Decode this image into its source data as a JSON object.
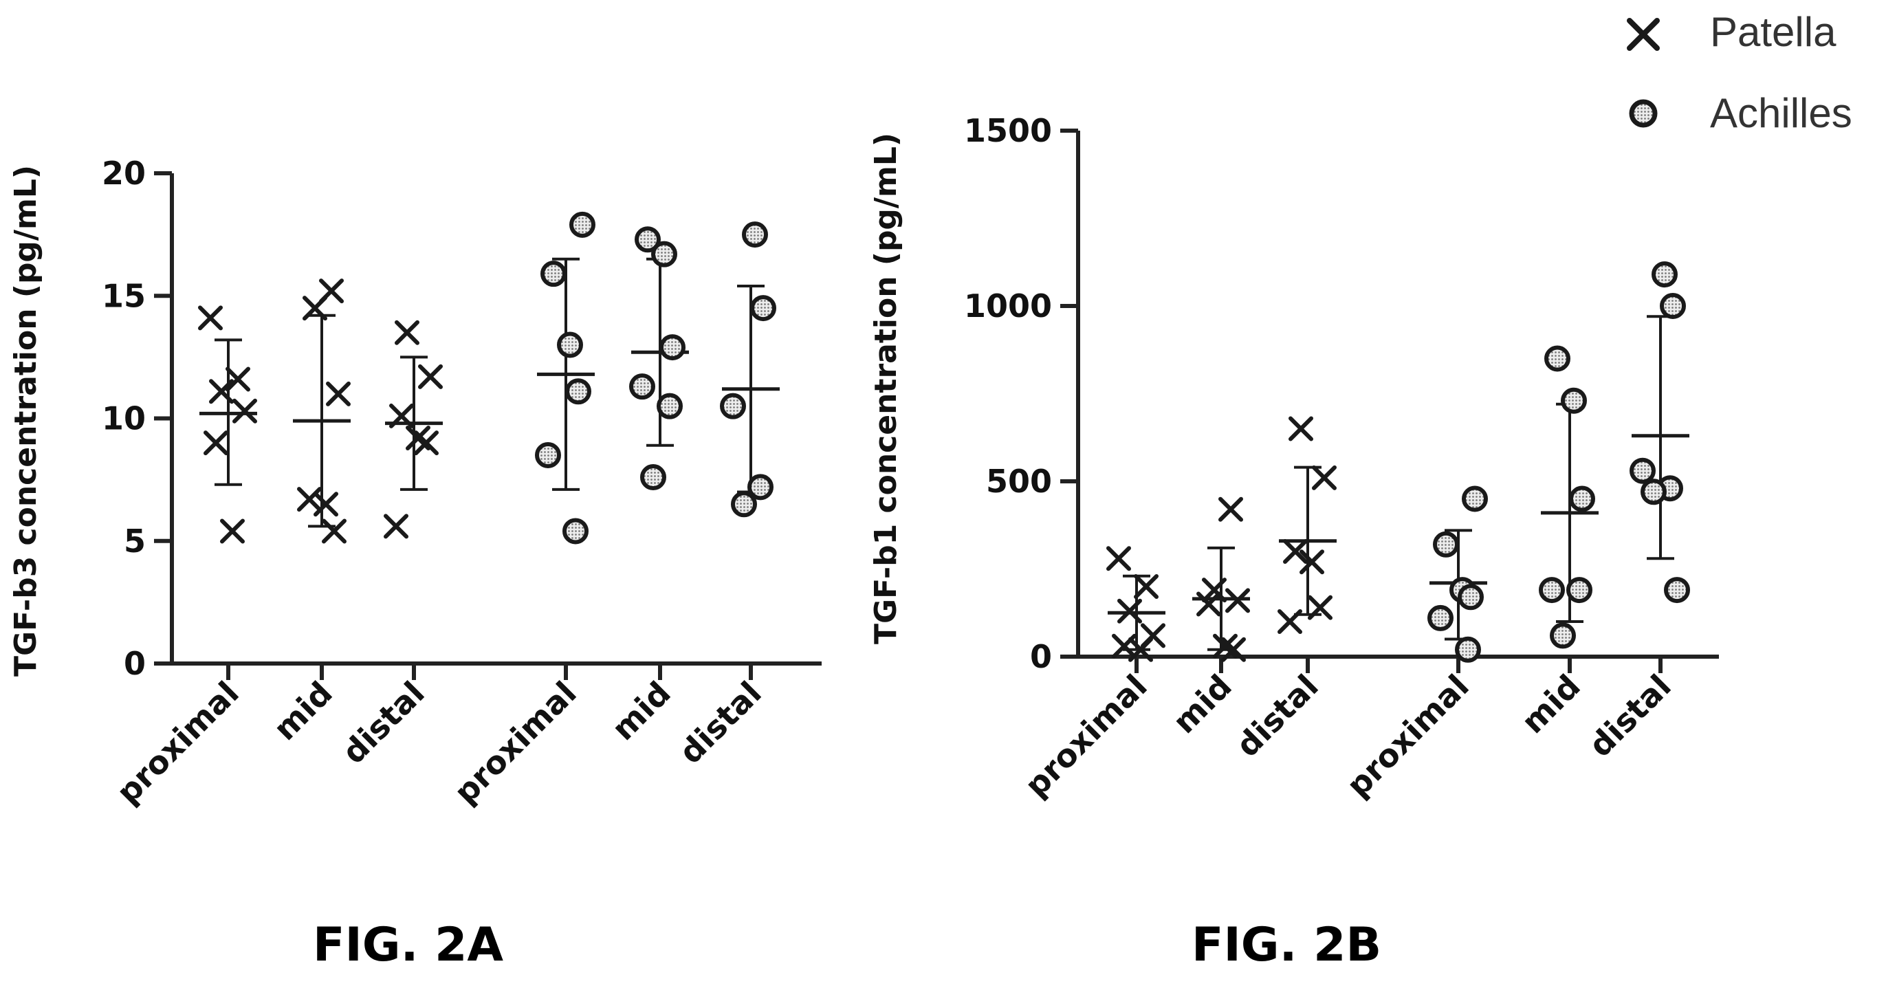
{
  "legend": [
    {
      "label": "Patella",
      "marker": "x-cross"
    },
    {
      "label": "Achilles",
      "marker": "dotted-circle"
    }
  ],
  "colors": {
    "axis": "#222222",
    "marker": "#1a1a1a",
    "circle_fill": "#a9a9a9",
    "text": "#111111"
  },
  "figures": [
    {
      "label": "FIG. 2A"
    },
    {
      "label": "FIG. 2B"
    }
  ],
  "chart_data": [
    {
      "type": "scatter",
      "title": "",
      "xlabel": "",
      "ylabel": "TGF-b3 concentration (pg/mL)",
      "ylim": [
        0,
        20
      ],
      "yticks": [
        0,
        5,
        10,
        15,
        20
      ],
      "categories": [
        "proximal",
        "mid",
        "distal",
        "proximal",
        "mid",
        "distal"
      ],
      "groups": [
        {
          "category": "proximal",
          "series": "Patella",
          "points": [
            14.1,
            11.6,
            11.1,
            10.3,
            9.0,
            5.4
          ],
          "mean": 10.2,
          "sd_upper": 13.2,
          "sd_lower": 7.3
        },
        {
          "category": "mid",
          "series": "Patella",
          "points": [
            15.2,
            14.5,
            11.0,
            6.7,
            6.5,
            5.4
          ],
          "mean": 9.9,
          "sd_upper": 14.2,
          "sd_lower": 5.6
        },
        {
          "category": "distal",
          "series": "Patella",
          "points": [
            13.5,
            11.7,
            10.1,
            9.2,
            9.0,
            5.6
          ],
          "mean": 9.8,
          "sd_upper": 12.5,
          "sd_lower": 7.1
        },
        {
          "category": "proximal",
          "series": "Achilles",
          "points": [
            17.9,
            15.9,
            13.0,
            11.1,
            8.5,
            5.4
          ],
          "mean": 11.8,
          "sd_upper": 16.5,
          "sd_lower": 7.1
        },
        {
          "category": "mid",
          "series": "Achilles",
          "points": [
            17.3,
            16.7,
            12.9,
            11.3,
            10.5,
            7.6
          ],
          "mean": 12.7,
          "sd_upper": 16.5,
          "sd_lower": 8.9
        },
        {
          "category": "distal",
          "series": "Achilles",
          "points": [
            17.5,
            14.5,
            10.5,
            7.2,
            6.5
          ],
          "mean": 11.2,
          "sd_upper": 15.4,
          "sd_lower": 7.0
        }
      ]
    },
    {
      "type": "scatter",
      "title": "",
      "xlabel": "",
      "ylabel": "TGF-b1 concentration (pg/mL)",
      "ylim": [
        0,
        1500
      ],
      "yticks": [
        0,
        500,
        1000,
        1500
      ],
      "categories": [
        "proximal",
        "mid",
        "distal",
        "proximal",
        "mid",
        "distal"
      ],
      "groups": [
        {
          "category": "proximal",
          "series": "Patella",
          "points": [
            280,
            200,
            130,
            60,
            30,
            20
          ],
          "mean": 125,
          "sd_upper": 230,
          "sd_lower": 20
        },
        {
          "category": "mid",
          "series": "Patella",
          "points": [
            420,
            190,
            160,
            150,
            30,
            20
          ],
          "mean": 165,
          "sd_upper": 310,
          "sd_lower": 20
        },
        {
          "category": "distal",
          "series": "Patella",
          "points": [
            650,
            510,
            300,
            270,
            140,
            100
          ],
          "mean": 330,
          "sd_upper": 540,
          "sd_lower": 120
        },
        {
          "category": "proximal",
          "series": "Achilles",
          "points": [
            450,
            320,
            190,
            170,
            110,
            20
          ],
          "mean": 210,
          "sd_upper": 360,
          "sd_lower": 50
        },
        {
          "category": "mid",
          "series": "Achilles",
          "points": [
            850,
            730,
            450,
            190,
            190,
            60
          ],
          "mean": 410,
          "sd_upper": 720,
          "sd_lower": 100
        },
        {
          "category": "distal",
          "series": "Achilles",
          "points": [
            1090,
            1000,
            530,
            480,
            470,
            190
          ],
          "mean": 630,
          "sd_upper": 970,
          "sd_lower": 280
        }
      ]
    }
  ]
}
